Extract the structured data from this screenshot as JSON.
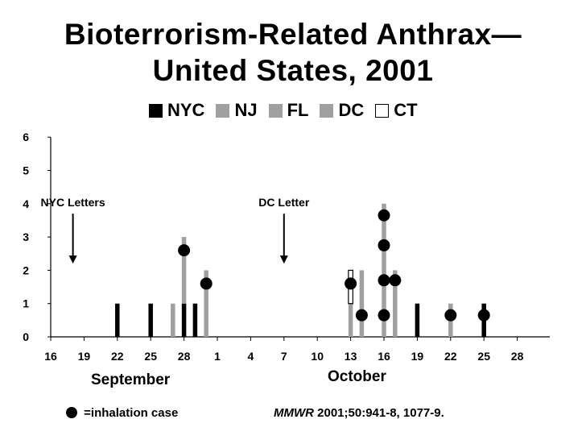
{
  "title_line1": "Bioterrorism-Related Anthrax—",
  "title_line2": "United States, 2001",
  "legend": [
    {
      "label": "NYC",
      "color": "#000000"
    },
    {
      "label": "NJ",
      "color": "#a0a0a0"
    },
    {
      "label": "FL",
      "color": "#a0a0a0"
    },
    {
      "label": "DC",
      "color": "#a0a0a0"
    },
    {
      "label": "CT",
      "color": "#ffffff"
    }
  ],
  "months": {
    "september": "September",
    "october": "October"
  },
  "footer": {
    "inhalation_label": "=inhalation case",
    "citation_italic": "MMWR",
    "citation_rest": " 2001;50:941-8, 1077-9."
  },
  "chart_data": {
    "type": "bar",
    "stacked": true,
    "x_tick_labels": [
      "16",
      "19",
      "22",
      "25",
      "28",
      "1",
      "4",
      "7",
      "10",
      "13",
      "16",
      "19",
      "22",
      "25",
      "28"
    ],
    "ylim": [
      0,
      6
    ],
    "y_ticks": [
      0,
      1,
      2,
      3,
      4,
      5,
      6
    ],
    "series": [
      {
        "name": "NYC",
        "color": "#000000",
        "points": [
          {
            "date": "2001-09-22",
            "y": 1
          },
          {
            "date": "2001-09-25",
            "y": 1
          },
          {
            "date": "2001-09-28",
            "y": 1
          },
          {
            "date": "2001-09-29",
            "y": 1
          },
          {
            "date": "2001-10-19",
            "y": 1
          },
          {
            "date": "2001-10-25",
            "y": 1
          }
        ]
      },
      {
        "name": "NJ",
        "color": "#a0a0a0",
        "points": [
          {
            "date": "2001-09-27",
            "y": 1
          },
          {
            "date": "2001-09-28",
            "y": 2
          },
          {
            "date": "2001-09-30",
            "y": 2
          },
          {
            "date": "2001-10-22",
            "y": 1
          }
        ]
      },
      {
        "name": "FL",
        "color": "#a0a0a0",
        "points": []
      },
      {
        "name": "DC",
        "color": "#a0a0a0",
        "points": [
          {
            "date": "2001-10-13",
            "y": 1
          },
          {
            "date": "2001-10-14",
            "y": 2
          },
          {
            "date": "2001-10-16",
            "y": 4
          },
          {
            "date": "2001-10-17",
            "y": 2
          }
        ]
      },
      {
        "name": "CT",
        "color": "#ffffff",
        "points": [
          {
            "date": "2001-10-13",
            "y": 1
          }
        ]
      }
    ],
    "inhalation_cases": [
      {
        "date": "2001-09-28",
        "y": 2.6
      },
      {
        "date": "2001-09-30",
        "y": 1.6
      },
      {
        "date": "2001-10-13",
        "y": 1.6
      },
      {
        "date": "2001-10-14",
        "y": 0.65
      },
      {
        "date": "2001-10-16",
        "y": 0.65
      },
      {
        "date": "2001-10-16",
        "y": 1.7
      },
      {
        "date": "2001-10-16",
        "y": 2.75
      },
      {
        "date": "2001-10-16",
        "y": 3.65
      },
      {
        "date": "2001-10-17",
        "y": 1.7
      },
      {
        "date": "2001-10-22",
        "y": 0.65
      },
      {
        "date": "2001-10-25",
        "y": 0.65
      }
    ],
    "annotations": [
      {
        "text": "NYC Letters",
        "date": "2001-09-18",
        "arrow_y_top": 3.7,
        "arrow_y_bottom": 2.2
      },
      {
        "text": "DC Letter",
        "date": "2001-10-07",
        "arrow_y_top": 3.7,
        "arrow_y_bottom": 2.2
      }
    ]
  }
}
